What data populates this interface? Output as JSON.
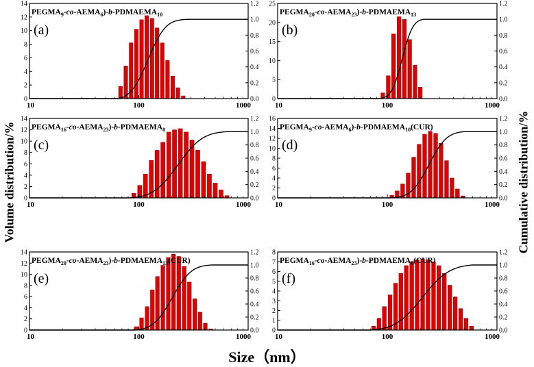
{
  "figure": {
    "ylabel_left": "Volume distribution/%",
    "ylabel_right": "Cumulative distribution/%",
    "xlabel": "Size（nm）",
    "bar_color": "#e00000",
    "curve_color": "#000000"
  },
  "chart_data": [
    {
      "type": "bar",
      "panel": "(a)",
      "title": [
        [
          "PEGMA",
          "n"
        ],
        [
          "9",
          "sub"
        ],
        [
          "-",
          "n"
        ],
        [
          "co",
          "i"
        ],
        [
          "-AEMA",
          "n"
        ],
        [
          "6",
          "sub"
        ],
        [
          ")-",
          "n"
        ],
        [
          "b",
          "i"
        ],
        [
          "-PDMAEMA",
          "n"
        ],
        [
          "10",
          "sub"
        ]
      ],
      "xscale": "log",
      "xlim": [
        10,
        1000
      ],
      "xticks": [
        10,
        100,
        1000
      ],
      "ylim": [
        0,
        14
      ],
      "yticks": [
        0,
        2,
        4,
        6,
        8,
        10,
        12,
        14
      ],
      "y2lim": [
        0,
        1.2
      ],
      "y2ticks": [
        "0.0",
        "0.2",
        "0.4",
        "0.6",
        "0.8",
        "1.0",
        "1.2"
      ],
      "sizes": [
        68,
        76,
        85,
        95,
        106,
        118,
        132,
        147,
        164,
        183,
        204,
        228,
        255
      ],
      "values": [
        1.8,
        4.8,
        8.2,
        10.2,
        11.6,
        12.2,
        11.8,
        10.4,
        8.2,
        5.6,
        3.3,
        1.6,
        0.4
      ],
      "cumulative_curve": {
        "start": 65,
        "end": 300
      }
    },
    {
      "type": "bar",
      "panel": "(b)",
      "title": [
        [
          "PEGMA",
          "n"
        ],
        [
          "20",
          "sub"
        ],
        [
          "-",
          "n"
        ],
        [
          "co",
          "i"
        ],
        [
          "-AEMA",
          "n"
        ],
        [
          "23",
          "sub"
        ],
        [
          ")-",
          "n"
        ],
        [
          "b",
          "i"
        ],
        [
          "-PDMAEMA",
          "n"
        ],
        [
          "13",
          "sub"
        ]
      ],
      "xscale": "log",
      "xlim": [
        10,
        1000
      ],
      "xticks": [
        10,
        100,
        1000
      ],
      "ylim": [
        0,
        25
      ],
      "yticks": [
        0,
        5,
        10,
        15,
        20,
        25
      ],
      "y2lim": [
        0,
        1.2
      ],
      "y2ticks": [
        "0.0",
        "0.2",
        "0.4",
        "0.6",
        "0.8",
        "1.0",
        "1.2"
      ],
      "sizes": [
        91,
        102,
        114,
        128,
        143,
        160,
        179,
        200
      ],
      "values": [
        1.5,
        6.0,
        17.0,
        21.5,
        20.8,
        15.5,
        8.8,
        3.0
      ],
      "cumulative_curve": {
        "start": 82,
        "end": 215
      }
    },
    {
      "type": "bar",
      "panel": "(c)",
      "title": [
        [
          "PEGMA",
          "n"
        ],
        [
          "16",
          "sub"
        ],
        [
          "-",
          "n"
        ],
        [
          "co",
          "i"
        ],
        [
          "-AEMA",
          "n"
        ],
        [
          "23",
          "sub"
        ],
        [
          ")-",
          "n"
        ],
        [
          "b",
          "i"
        ],
        [
          "-PDMAEMA",
          "n"
        ],
        [
          "8",
          "sub"
        ]
      ],
      "xscale": "log",
      "xlim": [
        10,
        1000
      ],
      "xticks": [
        10,
        100,
        1000
      ],
      "ylim": [
        0,
        14
      ],
      "yticks": [
        0,
        2,
        4,
        6,
        8,
        10,
        12,
        14
      ],
      "y2lim": [
        0,
        1.2
      ],
      "y2ticks": [
        "0.0",
        "0.2",
        "0.4",
        "0.6",
        "0.8",
        "1.0",
        "1.2"
      ],
      "sizes": [
        90,
        102,
        115,
        130,
        147,
        166,
        188,
        212,
        240,
        271,
        306,
        346,
        391,
        442,
        500,
        565,
        640
      ],
      "values": [
        0.8,
        2.2,
        4.2,
        6.6,
        8.4,
        9.8,
        11.6,
        12.0,
        12.2,
        11.6,
        10.2,
        8.4,
        6.4,
        4.2,
        2.6,
        1.4,
        0.4
      ],
      "cumulative_curve": {
        "start": 82,
        "end": 640
      }
    },
    {
      "type": "bar",
      "panel": "(d)",
      "title": [
        [
          "PEGMA",
          "n"
        ],
        [
          "9",
          "sub"
        ],
        [
          "-",
          "n"
        ],
        [
          "co",
          "i"
        ],
        [
          "-AEMA",
          "n"
        ],
        [
          "6",
          "sub"
        ],
        [
          ")-",
          "n"
        ],
        [
          "b",
          "i"
        ],
        [
          "-PDMAEMA",
          "n"
        ],
        [
          "10",
          "sub"
        ],
        [
          "(CUR)",
          "n"
        ]
      ],
      "xscale": "log",
      "xlim": [
        10,
        1000
      ],
      "xticks": [
        10,
        100,
        1000
      ],
      "ylim": [
        0,
        16
      ],
      "yticks": [
        0,
        2,
        4,
        6,
        8,
        10,
        12,
        14,
        16
      ],
      "y2lim": [
        0,
        1.2
      ],
      "y2ticks": [
        "0.0",
        "0.2",
        "0.4",
        "0.6",
        "0.8",
        "1.0",
        "1.2"
      ],
      "sizes": [
        110,
        123,
        138,
        155,
        174,
        195,
        219,
        246,
        276,
        309,
        347,
        389,
        436,
        489
      ],
      "values": [
        0.5,
        1.4,
        2.8,
        5.0,
        8.2,
        10.8,
        12.8,
        13.4,
        13.0,
        11.0,
        7.5,
        4.0,
        1.8,
        0.4
      ],
      "cumulative_curve": {
        "start": 105,
        "end": 500
      }
    },
    {
      "type": "bar",
      "panel": "(e)",
      "title": [
        [
          "PEGMA",
          "n"
        ],
        [
          "20",
          "sub"
        ],
        [
          "-",
          "n"
        ],
        [
          "co",
          "i"
        ],
        [
          "-AEMA",
          "n"
        ],
        [
          "23",
          "sub"
        ],
        [
          ")-",
          "n"
        ],
        [
          "b",
          "i"
        ],
        [
          "-PDMAEMA",
          "n"
        ],
        [
          "13",
          "sub"
        ],
        [
          "(CUR)",
          "n"
        ]
      ],
      "xscale": "log",
      "xlim": [
        10,
        1000
      ],
      "xticks": [
        10,
        100,
        1000
      ],
      "ylim": [
        0,
        14
      ],
      "yticks": [
        0,
        2,
        4,
        6,
        8,
        10,
        12,
        14
      ],
      "y2lim": [
        0,
        1.2
      ],
      "y2ticks": [
        "0.0",
        "0.2",
        "0.4",
        "0.6",
        "0.8",
        "1.0",
        "1.2"
      ],
      "sizes": [
        95,
        106,
        119,
        133,
        148,
        166,
        186,
        208,
        232,
        260,
        290,
        325,
        363,
        406,
        455
      ],
      "values": [
        0.6,
        2.2,
        4.2,
        7.2,
        9.6,
        11.6,
        13.0,
        13.6,
        13.2,
        11.4,
        8.6,
        5.6,
        3.2,
        1.2,
        0.2
      ],
      "cumulative_curve": {
        "start": 90,
        "end": 470
      }
    },
    {
      "type": "bar",
      "panel": "(f)",
      "title": [
        [
          "PEGMA",
          "n"
        ],
        [
          "16",
          "sub"
        ],
        [
          "-",
          "n"
        ],
        [
          "co",
          "i"
        ],
        [
          "-AEMA",
          "n"
        ],
        [
          "23",
          "sub"
        ],
        [
          ")-",
          "n"
        ],
        [
          "b",
          "i"
        ],
        [
          "-PDMAEMA",
          "n"
        ],
        [
          "8",
          "sub"
        ],
        [
          "(CUR)",
          "n"
        ]
      ],
      "xscale": "log",
      "xlim": [
        10,
        1000
      ],
      "xticks": [
        10,
        100,
        1000
      ],
      "ylim": [
        0,
        8
      ],
      "yticks": [
        0,
        1,
        2,
        3,
        4,
        5,
        6,
        7,
        8
      ],
      "y2lim": [
        0,
        1.2
      ],
      "y2ticks": [
        "0.0",
        "0.2",
        "0.4",
        "0.6",
        "0.8",
        "1.0",
        "1.2"
      ],
      "sizes": [
        75,
        84,
        94,
        106,
        119,
        133,
        149,
        167,
        187,
        210,
        235,
        264,
        295,
        331,
        371,
        416,
        466,
        522,
        585
      ],
      "values": [
        0.4,
        1.2,
        2.4,
        3.6,
        4.8,
        5.8,
        6.6,
        7.0,
        7.2,
        7.3,
        7.2,
        7.0,
        6.6,
        5.8,
        4.6,
        3.4,
        2.2,
        1.2,
        0.4
      ],
      "cumulative_curve": {
        "start": 70,
        "end": 600
      }
    }
  ]
}
